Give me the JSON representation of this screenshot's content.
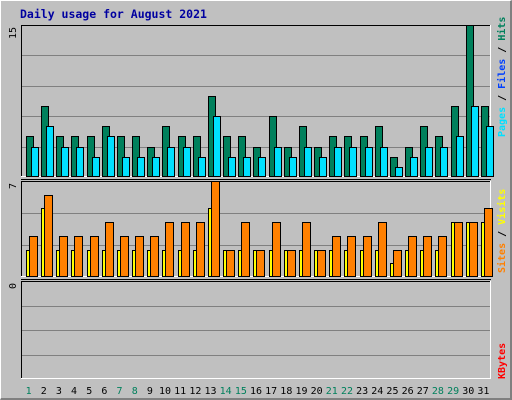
{
  "title": "Daily usage for August 2021",
  "colors": {
    "hits": "#00805c",
    "files": "#0040ff",
    "pages": "#00e0ff",
    "visits": "#ffff00",
    "sites": "#ff8000",
    "kbytes": "#ff0000",
    "weekend": "#00805c",
    "weekday": "#000000",
    "separator": "#000000"
  },
  "chart_data": [
    {
      "type": "bar",
      "panel": "top",
      "ymax": 15,
      "ymax_label": "15",
      "categories": [
        "1",
        "2",
        "3",
        "4",
        "5",
        "6",
        "7",
        "8",
        "9",
        "10",
        "11",
        "12",
        "13",
        "14",
        "15",
        "16",
        "17",
        "18",
        "19",
        "20",
        "21",
        "22",
        "23",
        "24",
        "25",
        "26",
        "27",
        "28",
        "29",
        "30",
        "31"
      ],
      "weekend_days": [
        "1",
        "7",
        "8",
        "14",
        "15",
        "21",
        "22",
        "28",
        "29"
      ],
      "legend": [
        "Pages",
        "Files",
        "Hits"
      ],
      "series": [
        {
          "name": "Hits",
          "color_key": "hits",
          "values": [
            4,
            7,
            4,
            4,
            4,
            5,
            4,
            4,
            3,
            5,
            4,
            4,
            8,
            4,
            4,
            3,
            6,
            3,
            5,
            3,
            4,
            4,
            4,
            5,
            2,
            3,
            5,
            4,
            7,
            15,
            7
          ]
        },
        {
          "name": "Files",
          "color_key": "files",
          "values": [
            3,
            5,
            3,
            3,
            2,
            4,
            2,
            2,
            2,
            3,
            3,
            2,
            6,
            2,
            2,
            2,
            3,
            2,
            3,
            2,
            3,
            3,
            3,
            3,
            1,
            2,
            3,
            3,
            4,
            7,
            5
          ]
        }
      ]
    },
    {
      "type": "bar",
      "panel": "middle",
      "ymax": 7,
      "ymax_label": "7",
      "legend": [
        "Sites",
        "Visits"
      ],
      "series": [
        {
          "name": "Visits",
          "color_key": "visits",
          "values": [
            2,
            5,
            2,
            2,
            2,
            2,
            2,
            2,
            2,
            2,
            2,
            2,
            5,
            2,
            2,
            2,
            2,
            2,
            2,
            2,
            2,
            2,
            2,
            2,
            1,
            2,
            2,
            2,
            4,
            4,
            4
          ]
        },
        {
          "name": "Sites",
          "color_key": "sites",
          "values": [
            3,
            6,
            3,
            3,
            3,
            4,
            3,
            3,
            3,
            4,
            4,
            4,
            7,
            2,
            4,
            2,
            4,
            2,
            4,
            2,
            3,
            3,
            3,
            4,
            2,
            3,
            3,
            3,
            4,
            4,
            5
          ]
        }
      ]
    },
    {
      "type": "bar",
      "panel": "bottom",
      "ymax": 0,
      "ymax_label": "0",
      "legend": [
        "KBytes"
      ],
      "series": [
        {
          "name": "KBytes",
          "color_key": "kbytes",
          "values": [
            0,
            0,
            0,
            0,
            0,
            0,
            0,
            0,
            0,
            0,
            0,
            0,
            0,
            0,
            0,
            0,
            0,
            0,
            0,
            0,
            0,
            0,
            0,
            0,
            0,
            0,
            0,
            0,
            0,
            0,
            0
          ]
        }
      ]
    }
  ]
}
